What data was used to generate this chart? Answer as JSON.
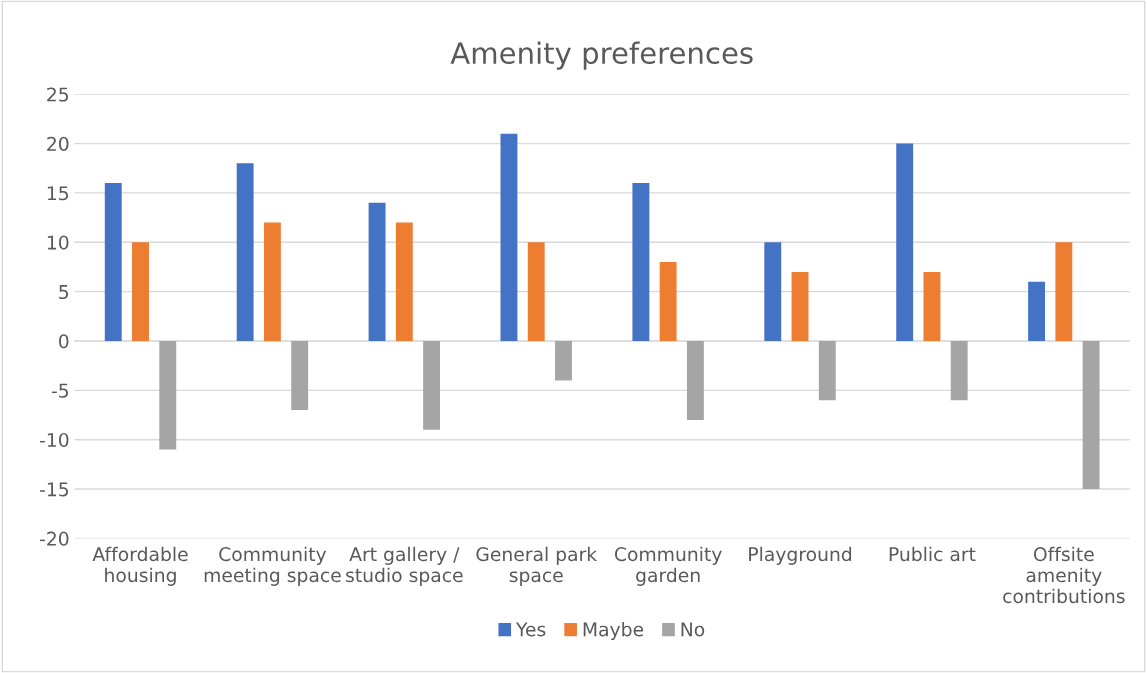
{
  "chart_data": {
    "type": "bar",
    "title": "Amenity preferences",
    "categories": [
      "Affordable housing",
      "Community meeting space",
      "Art gallery / studio space",
      "General park space",
      "Community garden",
      "Playground",
      "Public art",
      "Offsite amenity contributions"
    ],
    "series": [
      {
        "name": "Yes",
        "color": "#4472c4",
        "values": [
          16,
          18,
          14,
          21,
          16,
          10,
          20,
          6
        ]
      },
      {
        "name": "Maybe",
        "color": "#ed7d31",
        "values": [
          10,
          12,
          12,
          10,
          8,
          7,
          7,
          10
        ]
      },
      {
        "name": "No",
        "color": "#a5a5a5",
        "values": [
          -11,
          -7,
          -9,
          -4,
          -8,
          -6,
          -6,
          -15
        ]
      }
    ],
    "ylim": [
      -20,
      25
    ],
    "yticks": [
      -20,
      -15,
      -10,
      -5,
      0,
      5,
      10,
      15,
      20,
      25
    ],
    "grid": "y",
    "legend": "bottom"
  }
}
